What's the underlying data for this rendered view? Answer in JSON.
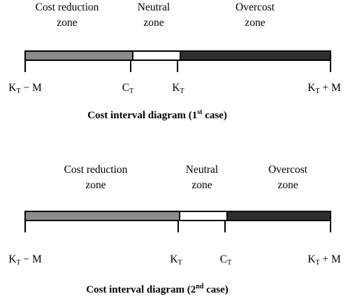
{
  "diagrams": [
    {
      "zones": [
        {
          "line1": "Cost reduction",
          "line2": "zone",
          "color": "#8c8c8c"
        },
        {
          "line1": "Neutral",
          "line2": "zone",
          "color": "#ffffff"
        },
        {
          "line1": "Overcost",
          "line2": "zone",
          "color": "#2f2f2f"
        }
      ],
      "ticks": [
        {
          "main": "K",
          "sub": "T",
          "suffix": " − M"
        },
        {
          "main": "C",
          "sub": "T",
          "suffix": ""
        },
        {
          "main": "K",
          "sub": "T",
          "suffix": ""
        },
        {
          "main": "K",
          "sub": "T",
          "suffix": " + M"
        }
      ],
      "caption": {
        "prefix": "Cost interval diagram (1",
        "sup": "st",
        "suffix": " case)"
      }
    },
    {
      "zones": [
        {
          "line1": "Cost reduction",
          "line2": "zone",
          "color": "#8c8c8c"
        },
        {
          "line1": "Neutral",
          "line2": "zone",
          "color": "#ffffff"
        },
        {
          "line1": "Overcost",
          "line2": "zone",
          "color": "#2f2f2f"
        }
      ],
      "ticks": [
        {
          "main": "K",
          "sub": "T",
          "suffix": " − M"
        },
        {
          "main": "K",
          "sub": "T",
          "suffix": ""
        },
        {
          "main": "C",
          "sub": "T",
          "suffix": ""
        },
        {
          "main": "K",
          "sub": "T",
          "suffix": " + M"
        }
      ],
      "caption": {
        "prefix": "Cost interval diagram (2",
        "sup": "nd",
        "suffix": " case)"
      }
    }
  ]
}
